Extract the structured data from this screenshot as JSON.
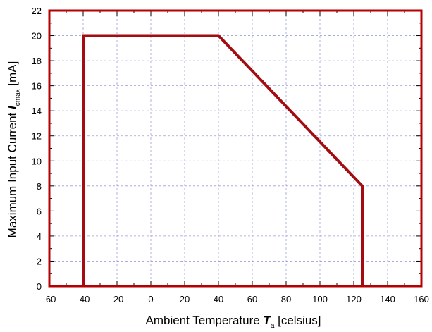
{
  "chart_data": {
    "type": "line",
    "xlim": [
      -60,
      160
    ],
    "ylim": [
      0,
      22
    ],
    "xticks": [
      -60,
      -40,
      -20,
      0,
      20,
      40,
      60,
      80,
      100,
      120,
      140,
      160
    ],
    "yticks": [
      0,
      2,
      4,
      6,
      8,
      10,
      12,
      14,
      16,
      18,
      20,
      22
    ],
    "xminor": [
      -50,
      -30,
      -10,
      10,
      30,
      50,
      70,
      90,
      110,
      130,
      150
    ],
    "yminor": [
      1,
      3,
      5,
      7,
      9,
      11,
      13,
      15,
      17,
      19,
      21
    ],
    "grid": true,
    "frame_color": "#b40000",
    "line_color": "#a30d12",
    "grid_color": "#9aa0d8",
    "xlabel": {
      "prefix": "Ambient Temperature ",
      "symbol": "T",
      "subscript": "a",
      "suffix": " [celsius]"
    },
    "ylabel": {
      "prefix": "Maximum Input Current ",
      "symbol": "I",
      "subscript": "cmax",
      "suffix": " [mA]"
    },
    "series": [
      {
        "x": [
          -40,
          -40,
          40,
          125,
          125
        ],
        "y": [
          0,
          20,
          20,
          8,
          0
        ]
      }
    ]
  }
}
